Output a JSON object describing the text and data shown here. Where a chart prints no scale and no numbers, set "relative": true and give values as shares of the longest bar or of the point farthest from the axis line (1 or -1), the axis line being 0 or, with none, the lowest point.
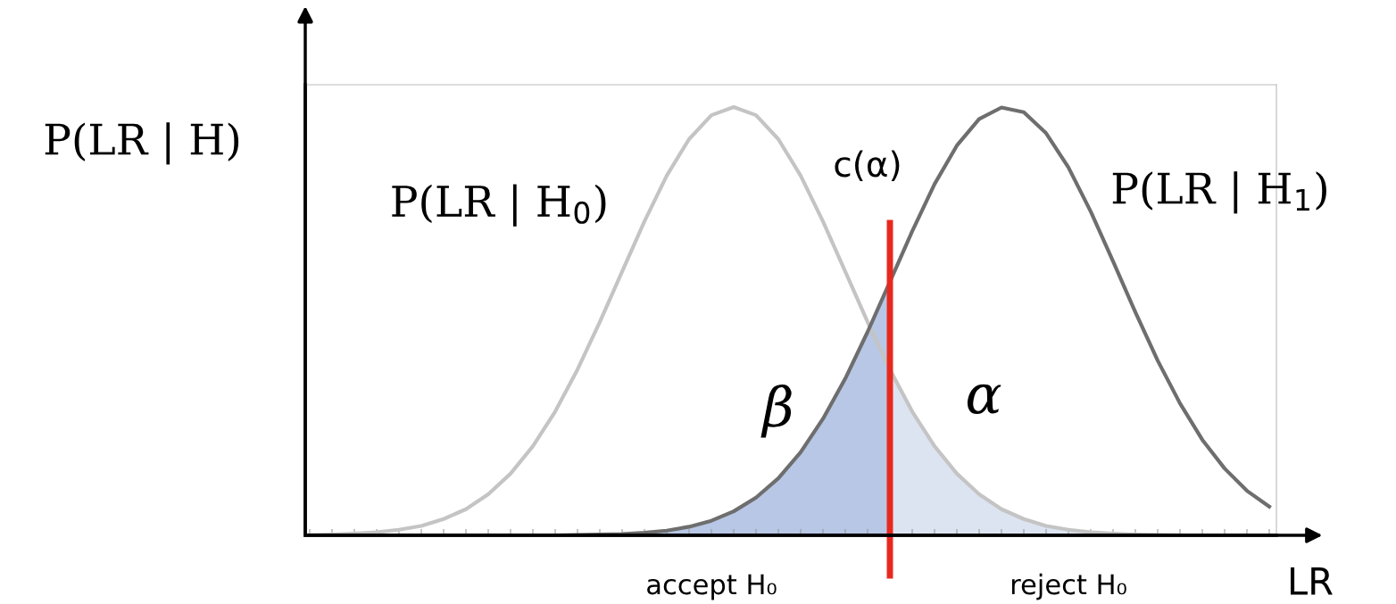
{
  "chart_data": {
    "type": "line",
    "relative": true,
    "ylabel": "P(LR | H)",
    "xlabel": "LR",
    "categories": [
      null,
      null,
      null,
      null,
      null,
      null,
      null,
      null,
      null,
      null,
      null,
      null,
      null,
      null,
      null,
      null,
      null,
      null,
      null,
      null,
      null,
      null,
      null,
      null,
      null,
      null,
      null,
      null,
      null,
      null,
      null,
      null,
      null,
      null,
      null,
      null,
      null,
      null,
      null,
      null,
      null,
      null,
      null,
      null
    ],
    "series": [
      {
        "type": "area",
        "color": "#b7c7e5",
        "values": [
          0,
          0,
          0,
          0,
          0,
          0,
          0,
          0,
          0,
          0,
          0,
          0,
          0.001,
          0.002,
          0.003,
          0.006,
          0.011,
          0.02,
          0.034,
          0.056,
          0.088,
          0.133,
          0.194,
          0.272,
          0.366,
          0.475,
          0.592,
          null,
          null,
          null,
          null,
          null,
          null,
          null,
          null,
          null,
          null,
          null,
          null,
          null,
          null,
          null,
          null,
          null
        ]
      },
      {
        "type": "area",
        "color": "#dde4f1",
        "values": [
          null,
          null,
          null,
          null,
          null,
          null,
          null,
          null,
          null,
          null,
          null,
          null,
          null,
          null,
          null,
          null,
          null,
          null,
          null,
          null,
          null,
          null,
          null,
          null,
          null,
          null,
          0.387,
          0.289,
          0.208,
          0.144,
          0.096,
          0.061,
          0.038,
          0.022,
          0.013,
          0.007,
          0.004,
          0.002,
          0.001,
          0,
          0,
          0,
          0,
          0
        ]
      },
      {
        "name": "P(LR | H$_{0}$)",
        "color": "#c4c4c4",
        "values": [
          0.001,
          0.002,
          0.004,
          0.007,
          0.013,
          0.022,
          0.038,
          0.061,
          0.096,
          0.144,
          0.208,
          0.289,
          0.387,
          0.498,
          0.616,
          0.733,
          0.84,
          0.925,
          0.981,
          1,
          0.981,
          0.925,
          0.84,
          0.733,
          0.616,
          0.498,
          0.387,
          0.289,
          0.208,
          0.144,
          0.096,
          0.061,
          0.038,
          0.022,
          0.013,
          0.007,
          0.004,
          0.002,
          0.001,
          0,
          0,
          0,
          0,
          0
        ]
      },
      {
        "name": "P(LR | H$_{1}$)",
        "color": "#6e6e6e",
        "values": [
          0,
          0,
          0,
          0,
          0,
          0,
          0,
          0,
          0,
          0,
          0,
          0,
          0.001,
          0.002,
          0.003,
          0.006,
          0.011,
          0.02,
          0.034,
          0.056,
          0.088,
          0.133,
          0.194,
          0.272,
          0.366,
          0.475,
          0.592,
          0.71,
          0.82,
          0.91,
          0.972,
          0.999,
          0.988,
          0.939,
          0.859,
          0.756,
          0.64,
          0.521,
          0.408,
          0.308,
          0.223,
          0.156,
          0.104,
          0.067
        ]
      }
    ],
    "annotations": [
      "β",
      "α",
      "accept H₀",
      "reject H₀",
      "c(α)"
    ],
    "legend": false,
    "grid": false,
    "marker": "none",
    "line_style": "solid"
  }
}
